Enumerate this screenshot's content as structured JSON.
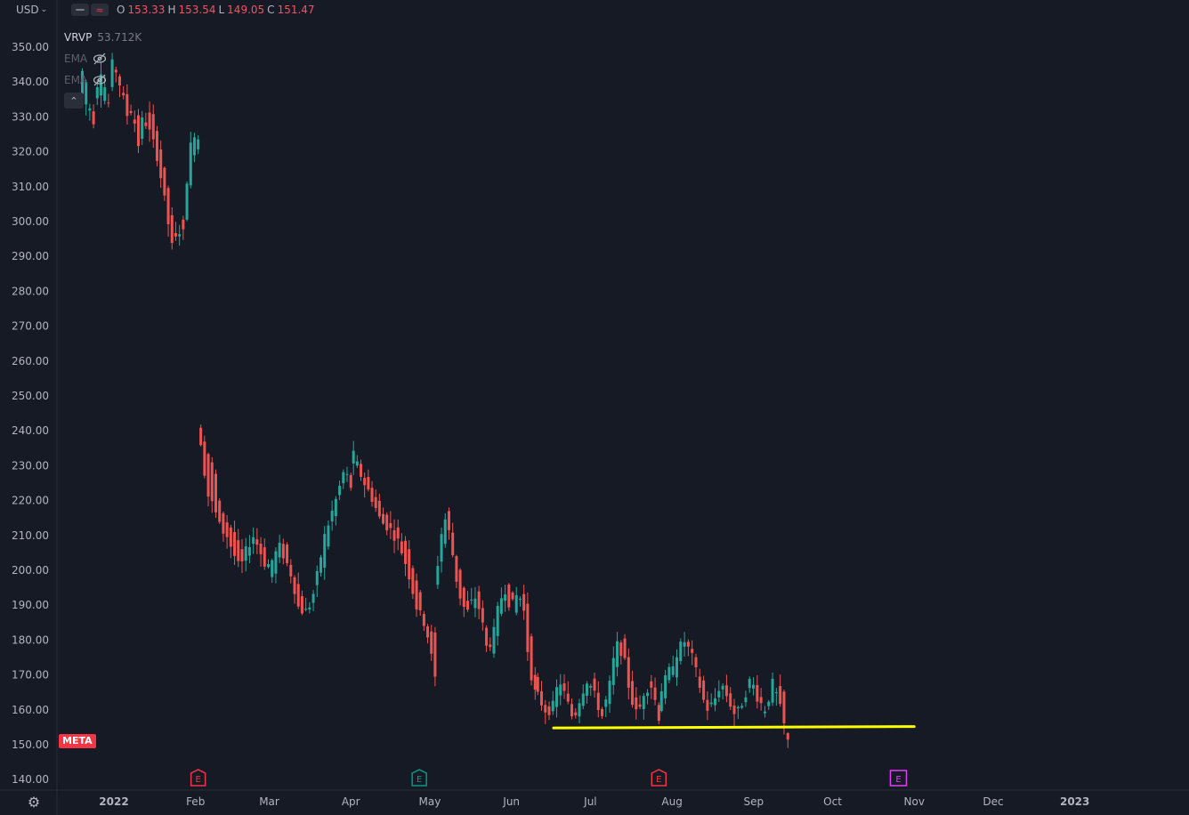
{
  "currency": {
    "label": "USD",
    "caret": "⌄"
  },
  "ohlc": {
    "o_label": "O",
    "o": "153.33",
    "h_label": "H",
    "h": "153.54",
    "l_label": "L",
    "l": "149.05",
    "c_label": "C",
    "c": "151.47"
  },
  "legend": {
    "vrvp_label": "VRVP",
    "vrvp_value": "53.712K",
    "ema1_label": "EMA",
    "ema2_label": "EMA"
  },
  "symbol": "META",
  "colors": {
    "up": "#26a69a",
    "down": "#ef5350",
    "support": "#ffff00",
    "earnings_red": "#f23645",
    "earnings_green": "#089981",
    "earnings_future": "#e040fb"
  },
  "chart_data": {
    "type": "candlestick",
    "y_range": [
      140,
      355
    ],
    "y_ticks": [
      "350.00",
      "340.00",
      "330.00",
      "320.00",
      "310.00",
      "300.00",
      "290.00",
      "280.00",
      "270.00",
      "260.00",
      "250.00",
      "240.00",
      "230.00",
      "220.00",
      "210.00",
      "200.00",
      "190.00",
      "180.00",
      "170.00",
      "160.00",
      "150.00",
      "140.00"
    ],
    "x_labels": [
      {
        "label": "2022",
        "date": "2022-01-01"
      },
      {
        "label": "Feb",
        "date": "2022-02-01"
      },
      {
        "label": "Mar",
        "date": "2022-03-01"
      },
      {
        "label": "Apr",
        "date": "2022-04-01"
      },
      {
        "label": "May",
        "date": "2022-05-01"
      },
      {
        "label": "Jun",
        "date": "2022-06-01"
      },
      {
        "label": "Jul",
        "date": "2022-07-01"
      },
      {
        "label": "Aug",
        "date": "2022-08-01"
      },
      {
        "label": "Sep",
        "date": "2022-09-01"
      },
      {
        "label": "Oct",
        "date": "2022-10-01"
      },
      {
        "label": "Nov",
        "date": "2022-11-01"
      },
      {
        "label": "Dec",
        "date": "2022-12-01"
      },
      {
        "label": "2023",
        "date": "2023-01-01"
      }
    ],
    "segments": [
      {
        "start": "2021-12-20",
        "end": "2022-02-02",
        "path": [
          [
            336,
            343
          ],
          [
            333,
            339
          ],
          [
            330,
            326
          ],
          [
            335,
            340
          ],
          [
            338,
            345
          ],
          [
            333,
            331
          ],
          [
            340,
            346
          ],
          [
            345,
            342
          ],
          [
            338,
            336
          ],
          [
            336,
            330
          ],
          [
            331,
            333
          ],
          [
            330,
            321
          ],
          [
            323,
            330
          ],
          [
            333,
            327
          ],
          [
            330,
            323
          ],
          [
            325,
            318
          ],
          [
            319,
            309
          ],
          [
            310,
            300
          ],
          [
            300,
            291
          ],
          [
            296,
            298
          ],
          [
            300,
            296
          ],
          [
            302,
            317
          ],
          [
            318,
            326
          ],
          [
            322,
            324
          ]
        ]
      },
      {
        "start": "2022-02-03",
        "end": "2022-04-01",
        "path": [
          [
            240,
            237
          ],
          [
            234,
            222
          ],
          [
            230,
            218
          ],
          [
            220,
            212
          ],
          [
            214,
            210
          ],
          [
            211,
            205
          ],
          [
            208,
            200
          ],
          [
            202,
            206
          ],
          [
            207,
            210
          ],
          [
            210,
            206
          ],
          [
            205,
            201
          ],
          [
            196,
            203
          ],
          [
            204,
            207
          ],
          [
            208,
            203
          ],
          [
            200,
            198
          ],
          [
            196,
            189
          ],
          [
            190,
            188
          ],
          [
            188,
            191
          ],
          [
            196,
            200
          ],
          [
            202,
            210
          ],
          [
            212,
            216
          ],
          [
            218,
            222
          ],
          [
            226,
            229
          ],
          [
            227,
            224
          ]
        ]
      },
      {
        "start": "2022-04-02",
        "end": "2022-05-03",
        "path": [
          [
            231,
            233
          ],
          [
            229,
            226
          ],
          [
            224,
            221
          ],
          [
            219,
            214
          ],
          [
            214,
            212
          ],
          [
            211,
            208
          ],
          [
            207,
            200
          ],
          [
            198,
            189
          ],
          [
            186,
            184
          ],
          [
            181,
            169
          ]
        ]
      },
      {
        "start": "2022-05-04",
        "end": "2022-06-10",
        "path": [
          [
            196,
            202
          ],
          [
            206,
            216
          ],
          [
            218,
            210
          ],
          [
            205,
            198
          ],
          [
            197,
            190
          ],
          [
            191,
            188
          ],
          [
            189,
            193
          ],
          [
            194,
            188
          ],
          [
            184,
            178
          ],
          [
            176,
            180
          ],
          [
            183,
            190
          ],
          [
            192,
            195
          ],
          [
            197,
            189
          ],
          [
            188,
            193
          ],
          [
            196,
            191
          ],
          [
            187,
            173
          ],
          [
            170,
            165
          ]
        ]
      },
      {
        "start": "2022-06-11",
        "end": "2022-07-27",
        "path": [
          [
            168,
            164
          ],
          [
            162,
            160
          ],
          [
            158,
            160
          ],
          [
            163,
            169
          ],
          [
            168,
            163
          ],
          [
            160,
            157
          ],
          [
            159,
            164
          ],
          [
            166,
            169
          ],
          [
            168,
            164
          ],
          [
            161,
            158
          ],
          [
            160,
            166
          ],
          [
            171,
            179
          ],
          [
            181,
            176
          ],
          [
            172,
            164
          ],
          [
            163,
            158
          ],
          [
            159,
            166
          ],
          [
            170,
            167
          ],
          [
            162,
            158
          ]
        ]
      },
      {
        "start": "2022-07-28",
        "end": "2022-09-14",
        "path": [
          [
            160,
            166
          ],
          [
            168,
            171
          ],
          [
            169,
            176
          ],
          [
            178,
            180
          ],
          [
            179,
            176
          ],
          [
            172,
            168
          ],
          [
            165,
            160
          ],
          [
            159,
            162
          ],
          [
            165,
            168
          ],
          [
            166,
            163
          ],
          [
            160,
            158
          ],
          [
            159,
            163
          ],
          [
            166,
            169
          ],
          [
            168,
            163
          ],
          [
            159,
            160
          ],
          [
            163,
            168
          ],
          [
            167,
            160
          ],
          [
            162,
            151
          ]
        ]
      }
    ],
    "support_line": {
      "from": {
        "date": "2022-06-17",
        "value": 154.8
      },
      "to": {
        "date": "2022-11-01",
        "value": 155.2
      }
    },
    "earnings_markers": [
      {
        "date": "2022-02-02",
        "label": "E",
        "color": "red"
      },
      {
        "date": "2022-04-27",
        "label": "E",
        "color": "green"
      },
      {
        "date": "2022-07-27",
        "label": "E",
        "color": "red"
      },
      {
        "date": "2022-10-26",
        "label": "E",
        "color": "future"
      }
    ]
  }
}
